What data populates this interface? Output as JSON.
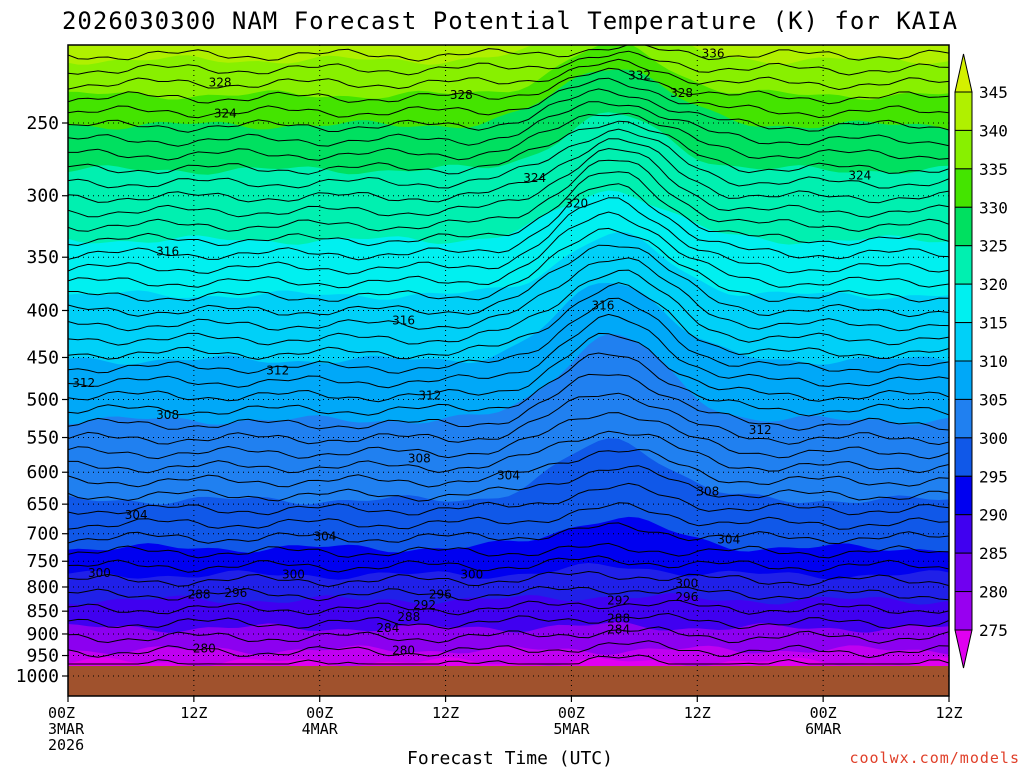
{
  "chart_data": {
    "type": "heatmap",
    "title": "2026030300 NAM Forecast Potential Temperature (K) for KAIA",
    "xlabel": "Forecast Time (UTC)",
    "ylabel": "",
    "credit": "coolwx.com/models",
    "yaxis": {
      "units": "hPa",
      "range": [
        1000,
        200
      ],
      "ticks": [
        "250",
        "300",
        "350",
        "400",
        "450",
        "500",
        "550",
        "600",
        "650",
        "700",
        "750",
        "800",
        "850",
        "900",
        "950",
        "1000"
      ]
    },
    "xaxis": {
      "range_hours": [
        0,
        84
      ],
      "ticks": [
        {
          "hour": 0,
          "l1": "00Z",
          "l2": "3MAR",
          "l3": "2026"
        },
        {
          "hour": 12,
          "l1": "12Z",
          "l2": "",
          "l3": ""
        },
        {
          "hour": 24,
          "l1": "00Z",
          "l2": "4MAR",
          "l3": ""
        },
        {
          "hour": 36,
          "l1": "12Z",
          "l2": "",
          "l3": ""
        },
        {
          "hour": 48,
          "l1": "00Z",
          "l2": "5MAR",
          "l3": ""
        },
        {
          "hour": 60,
          "l1": "12Z",
          "l2": "",
          "l3": ""
        },
        {
          "hour": 72,
          "l1": "00Z",
          "l2": "6MAR",
          "l3": ""
        },
        {
          "hour": 84,
          "l1": "12Z",
          "l2": "",
          "l3": ""
        }
      ]
    },
    "colorbar": {
      "labels": [
        "345",
        "340",
        "335",
        "330",
        "325",
        "320",
        "315",
        "310",
        "305",
        "300",
        "295",
        "290",
        "285",
        "280",
        "275"
      ],
      "colors": [
        "#d4f000",
        "#b0f000",
        "#88f000",
        "#44e400",
        "#00e060",
        "#00f0b0",
        "#00f0f0",
        "#00d0f8",
        "#00a8f8",
        "#2080f0",
        "#1058e8",
        "#0000f0",
        "#4000f0",
        "#7000f0",
        "#9800f0",
        "#c000f0",
        "#e000f0"
      ]
    },
    "contour_labels": [
      {
        "text": "336",
        "hour": 61.5,
        "p": 210
      },
      {
        "text": "332",
        "hour": 54.5,
        "p": 222
      },
      {
        "text": "328",
        "hour": 14.5,
        "p": 226
      },
      {
        "text": "328",
        "hour": 37.5,
        "p": 233
      },
      {
        "text": "328",
        "hour": 58.5,
        "p": 232
      },
      {
        "text": "324",
        "hour": 15.0,
        "p": 244
      },
      {
        "text": "324",
        "hour": 44.5,
        "p": 287
      },
      {
        "text": "324",
        "hour": 75.5,
        "p": 285
      },
      {
        "text": "320",
        "hour": 48.5,
        "p": 306
      },
      {
        "text": "316",
        "hour": 9.5,
        "p": 345
      },
      {
        "text": "316",
        "hour": 32.0,
        "p": 410
      },
      {
        "text": "316",
        "hour": 51.0,
        "p": 395
      },
      {
        "text": "312",
        "hour": 1.5,
        "p": 480
      },
      {
        "text": "312",
        "hour": 20.0,
        "p": 465
      },
      {
        "text": "312",
        "hour": 34.5,
        "p": 495
      },
      {
        "text": "312",
        "hour": 66.0,
        "p": 540
      },
      {
        "text": "308",
        "hour": 9.5,
        "p": 520
      },
      {
        "text": "308",
        "hour": 33.5,
        "p": 580
      },
      {
        "text": "308",
        "hour": 61.0,
        "p": 630
      },
      {
        "text": "304",
        "hour": 6.5,
        "p": 668
      },
      {
        "text": "304",
        "hour": 24.5,
        "p": 705
      },
      {
        "text": "304",
        "hour": 42.0,
        "p": 605
      },
      {
        "text": "304",
        "hour": 63.0,
        "p": 710
      },
      {
        "text": "300",
        "hour": 3.0,
        "p": 772
      },
      {
        "text": "300",
        "hour": 21.5,
        "p": 775
      },
      {
        "text": "300",
        "hour": 38.5,
        "p": 775
      },
      {
        "text": "300",
        "hour": 59.0,
        "p": 793
      },
      {
        "text": "296",
        "hour": 16.0,
        "p": 812
      },
      {
        "text": "296",
        "hour": 35.5,
        "p": 815
      },
      {
        "text": "296",
        "hour": 59.0,
        "p": 820
      },
      {
        "text": "292",
        "hour": 34.0,
        "p": 837
      },
      {
        "text": "292",
        "hour": 52.5,
        "p": 828
      },
      {
        "text": "288",
        "hour": 12.5,
        "p": 815
      },
      {
        "text": "288",
        "hour": 32.5,
        "p": 862
      },
      {
        "text": "288",
        "hour": 52.5,
        "p": 866
      },
      {
        "text": "284",
        "hour": 30.5,
        "p": 887
      },
      {
        "text": "284",
        "hour": 52.5,
        "p": 890
      },
      {
        "text": "280",
        "hour": 13.0,
        "p": 933
      },
      {
        "text": "280",
        "hour": 32.0,
        "p": 938
      }
    ]
  }
}
